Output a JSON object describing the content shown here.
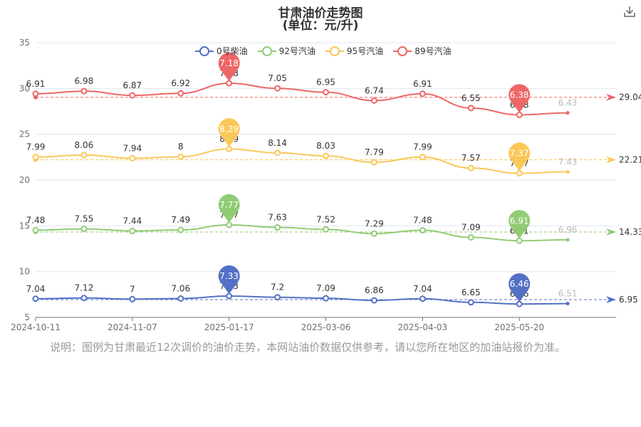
{
  "title": "甘肃油价走势图",
  "subtitle": "(单位：元/升)",
  "note": "说明：图例为甘肃最近12次调价的油价走势，本网站油价数据仅供参考，请以您所在地区的加油站报价为准。",
  "download_icon": "download-icon",
  "chart_data": {
    "type": "line",
    "x_labels": [
      "2024-10-11",
      "2024-11-07",
      "2025-01-17",
      "2025-03-06",
      "2025-04-03",
      "2025-05-20"
    ],
    "y_ticks": [
      5,
      10,
      15,
      20,
      25,
      30,
      35
    ],
    "ylim": [
      5,
      35
    ],
    "grid": true,
    "legend_position": "top",
    "series": [
      {
        "name": "0号柴油",
        "color": "#5470c6",
        "values": [
          7.04,
          7.12,
          7.0,
          7.06,
          7.33,
          7.2,
          7.09,
          6.86,
          7.04,
          6.65,
          6.46,
          6.51
        ],
        "plot_y": [
          7.04,
          7.12,
          7.0,
          7.06,
          7.33,
          7.2,
          7.09,
          6.86,
          7.04,
          6.65,
          6.46,
          6.51
        ],
        "max_label": "7.33",
        "min_label": "6.46",
        "avg_label": "6.95",
        "avg": 6.95
      },
      {
        "name": "92号汽油",
        "color": "#91cc75",
        "values": [
          7.48,
          7.55,
          7.44,
          7.49,
          7.77,
          7.63,
          7.52,
          7.29,
          7.48,
          7.09,
          6.91,
          6.96
        ],
        "plot_y": [
          14.52,
          14.67,
          14.44,
          14.55,
          15.1,
          14.83,
          14.61,
          14.15,
          14.52,
          13.74,
          13.37,
          13.47
        ],
        "max_label": "7.77",
        "min_label": "6.91",
        "avg_label": "14.33",
        "avg": 14.33
      },
      {
        "name": "95号汽油",
        "color": "#fac858",
        "values": [
          7.99,
          8.06,
          7.94,
          8.0,
          8.29,
          8.14,
          8.03,
          7.79,
          7.99,
          7.57,
          7.37,
          7.43
        ],
        "plot_y": [
          22.51,
          22.73,
          22.38,
          22.55,
          23.39,
          22.97,
          22.64,
          21.94,
          22.51,
          21.31,
          20.74,
          20.9
        ],
        "max_label": "8.29",
        "min_label": "7.37",
        "avg_label": "22.21",
        "avg": 22.21
      },
      {
        "name": "89号汽油",
        "color": "#ee6666",
        "values": [
          6.91,
          6.98,
          6.87,
          6.92,
          7.18,
          7.05,
          6.95,
          6.74,
          6.91,
          6.55,
          6.38,
          6.43
        ],
        "plot_y": [
          29.42,
          29.71,
          29.25,
          29.47,
          30.57,
          30.02,
          29.59,
          28.68,
          29.42,
          27.86,
          27.12,
          27.33
        ],
        "max_label": "7.18",
        "min_label": "6.38",
        "avg_label": "29.04",
        "avg": 29.04
      }
    ]
  }
}
